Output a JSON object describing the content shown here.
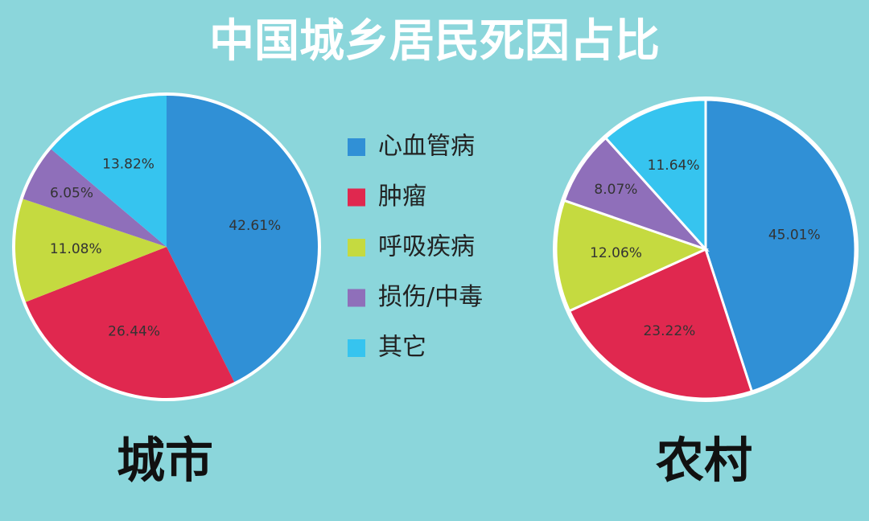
{
  "title": "中国城乡居民死因占比",
  "chart_data": [
    {
      "type": "pie",
      "title": "城市",
      "categories": [
        "心血管病",
        "肿瘤",
        "呼吸疾病",
        "损伤/中毒",
        "其它"
      ],
      "values": [
        42.61,
        26.44,
        11.08,
        6.05,
        13.82
      ],
      "value_labels": [
        "42.61%",
        "26.44%",
        "11.08%",
        "6.05%",
        "13.82%"
      ],
      "colors": [
        "#3090d6",
        "#e0284f",
        "#c5da40",
        "#8f6fba",
        "#36c4ef"
      ]
    },
    {
      "type": "pie",
      "title": "农村",
      "categories": [
        "心血管病",
        "肿瘤",
        "呼吸疾病",
        "损伤/中毒",
        "其它"
      ],
      "values": [
        45.01,
        23.22,
        12.06,
        8.07,
        11.64
      ],
      "value_labels": [
        "45.01%",
        "23.22%",
        "12.06%",
        "8.07%",
        "11.64%"
      ],
      "colors": [
        "#3090d6",
        "#e0284f",
        "#c5da40",
        "#8f6fba",
        "#36c4ef"
      ]
    }
  ]
}
